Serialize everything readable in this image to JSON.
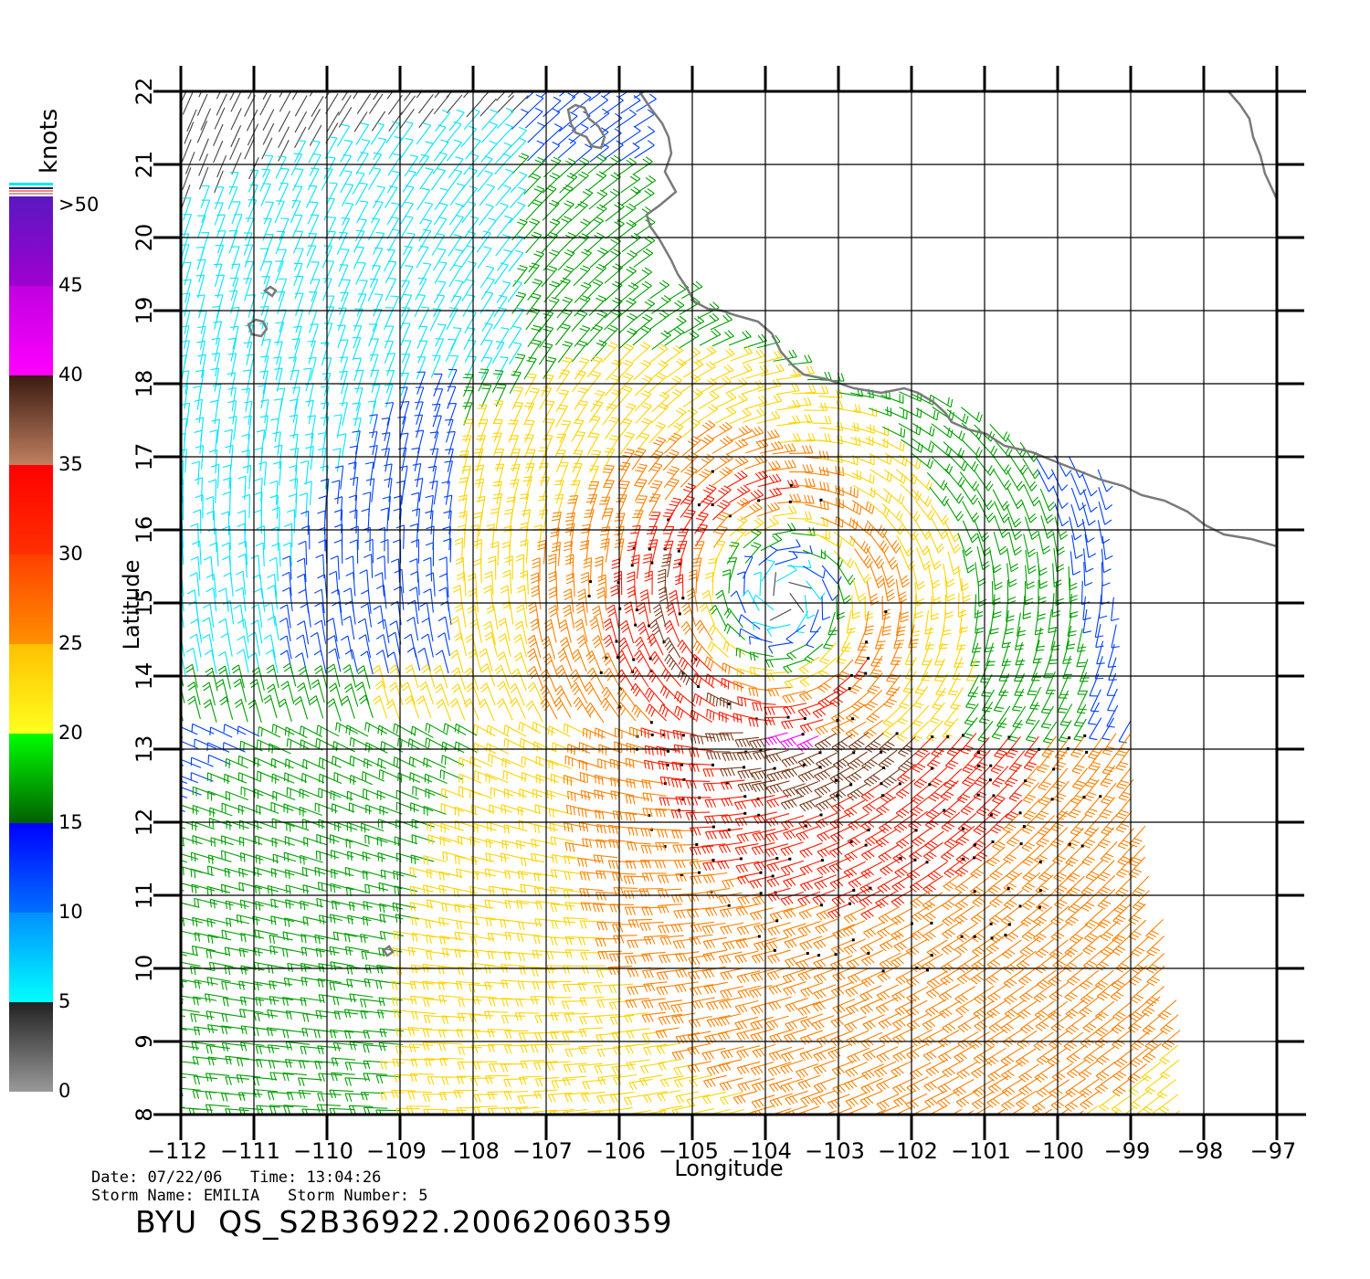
{
  "map": {
    "lon_range": [
      -112,
      -97
    ],
    "lat_range": [
      8,
      22
    ],
    "lon_ticks": [
      "−112",
      "−111",
      "−110",
      "−109",
      "−108",
      "−107",
      "−106",
      "−105",
      "−104",
      "−103",
      "−102",
      "−101",
      "−100",
      "−99",
      "−98",
      "−97"
    ],
    "lat_ticks": [
      "8",
      "9",
      "10",
      "11",
      "12",
      "13",
      "14",
      "15",
      "16",
      "17",
      "18",
      "19",
      "20",
      "21",
      "22"
    ],
    "xlabel": "Longitude",
    "ylabel": "Latitude",
    "grid": true,
    "layers": [
      "coastline",
      "wind-barbs"
    ],
    "storm_center_approx": {
      "lon": -103.9,
      "lat": 15.0
    }
  },
  "colorbar": {
    "unit": "knots",
    "labels": [
      ">50",
      "45",
      "40",
      "35",
      "30",
      "25",
      "20",
      "15",
      "10",
      "5",
      "0"
    ],
    "colors": {
      "0-5": "#444444",
      "5-10": "#00e5ff",
      "10-15": "#0040ff",
      "15-20": "#00a000",
      "20-25": "#ffd400",
      "25-30": "#ff8000",
      "30-35": "#ff1a00",
      "35-40": "#7a3a1a",
      "40-45": "#ff00ff",
      "45-50": "#9900cc",
      ">50": "#5a18b8"
    }
  },
  "info": {
    "date_label": "Date:",
    "date_value": "07/22/06",
    "time_label": "Time:",
    "time_value": "13:04:26",
    "storm_name_label": "Storm Name:",
    "storm_name_value": "EMILIA",
    "storm_number_label": "Storm Number:",
    "storm_number_value": "5",
    "product": "BYU  QS_S2B36922.20062060359"
  }
}
